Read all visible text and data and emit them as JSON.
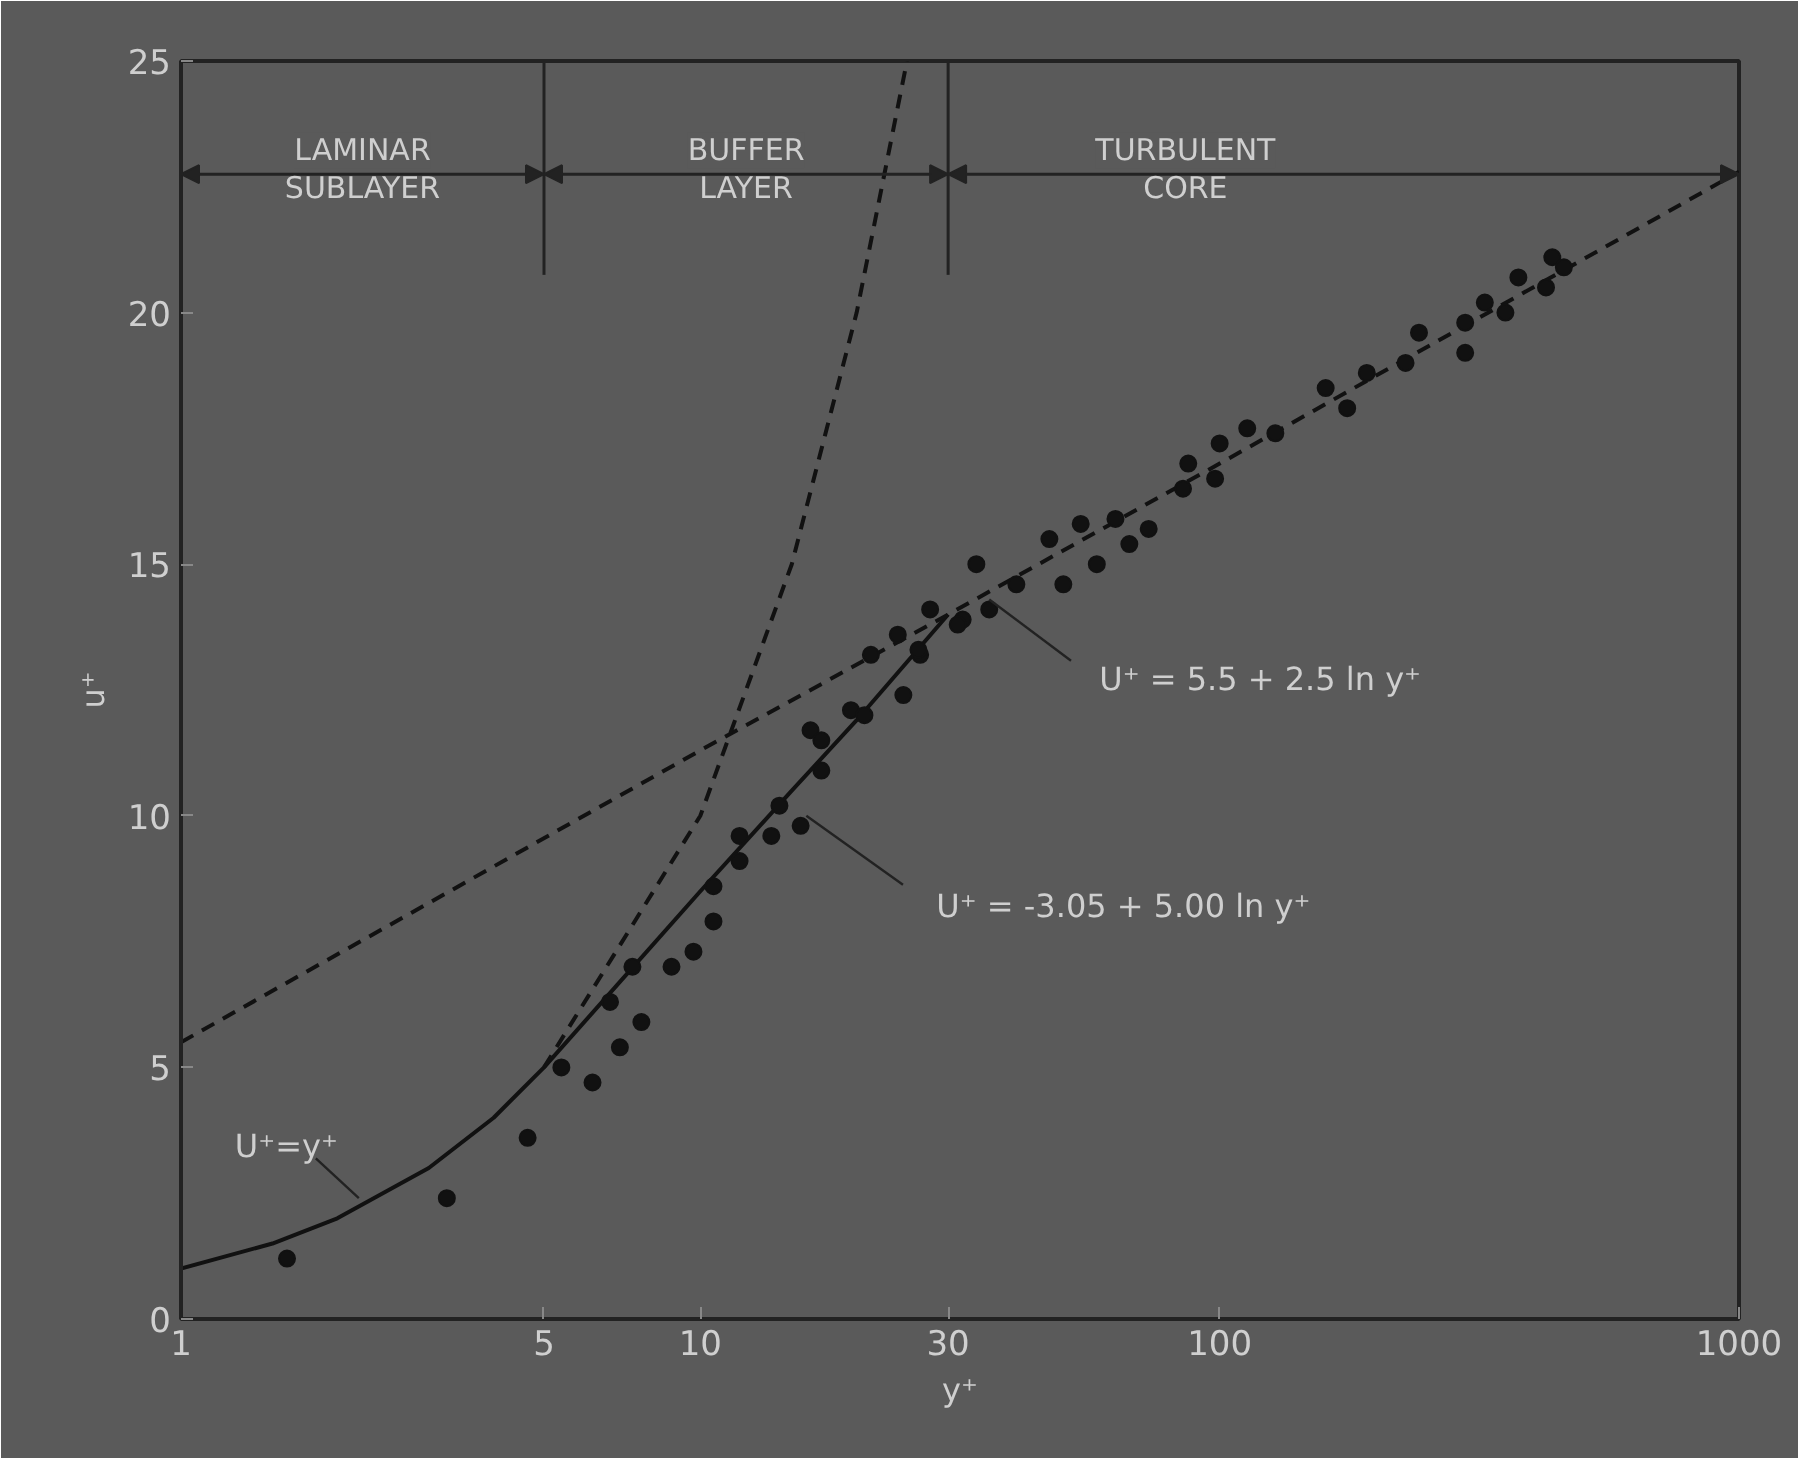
{
  "chart_data": {
    "type": "line",
    "xlabel": "y⁺",
    "ylabel": "u⁺",
    "log": "x",
    "grid": false,
    "marker": "none",
    "xlim": [
      1,
      1000
    ],
    "ylim": [
      0,
      25
    ],
    "xticks": [
      1,
      5,
      10,
      30,
      100,
      1000
    ],
    "yticks": [
      0,
      5,
      10,
      15,
      20,
      25
    ],
    "series": [
      {
        "color": "#111111",
        "line_style": "solid",
        "x": [
          1,
          1.5,
          2,
          3,
          4,
          5,
          7,
          10,
          15,
          20,
          30
        ],
        "values": [
          1,
          1.5,
          2,
          3,
          4,
          5.0,
          6.7,
          8.5,
          10.5,
          11.9,
          14.0
        ]
      },
      {
        "color": "#111111",
        "line_style": "dashed",
        "x": [
          1,
          10,
          30,
          100,
          1000
        ],
        "values": [
          5.5,
          11.3,
          14.0,
          17.0,
          22.8
        ]
      },
      {
        "color": "#111111",
        "line_style": "dashed",
        "x": [
          5,
          10,
          15,
          20,
          25
        ],
        "values": [
          5,
          10,
          15,
          20,
          25
        ]
      },
      {
        "type": "scatter",
        "color": "#111111",
        "marker": "circle",
        "x": [
          1.6,
          3.25,
          4.65,
          5.4,
          6.2,
          7.0,
          7.7,
          6.7,
          7.4,
          8.8,
          9.7,
          10.6,
          10.6,
          11.9,
          11.9,
          13.7,
          14.2,
          15.6,
          16.3,
          17.1,
          17.1,
          19.5,
          20.7,
          21.3,
          24.6,
          24,
          27.7,
          26.5,
          32,
          34,
          36,
          26.3,
          31.3,
          40.6,
          47,
          50,
          54,
          58,
          63,
          67,
          73,
          85,
          87,
          98,
          100,
          113,
          128,
          160,
          176,
          192,
          228,
          242,
          297,
          297,
          324,
          355,
          376,
          425,
          437,
          460
        ],
        "values": [
          1.2,
          2.4,
          3.6,
          5.0,
          4.7,
          5.4,
          5.9,
          6.3,
          7.0,
          7.0,
          7.3,
          7.9,
          8.6,
          9.1,
          9.6,
          9.6,
          10.2,
          9.8,
          11.7,
          10.9,
          11.5,
          12.1,
          12.0,
          13.2,
          12.4,
          13.6,
          14.1,
          13.2,
          13.9,
          15.0,
          14.1,
          13.3,
          13.8,
          14.6,
          15.5,
          14.6,
          15.8,
          15.0,
          15.9,
          15.4,
          15.7,
          16.5,
          17.0,
          16.7,
          17.4,
          17.7,
          17.6,
          18.5,
          18.1,
          18.8,
          19.0,
          19.6,
          19.2,
          19.8,
          20.2,
          20.0,
          20.7,
          20.5,
          21.1,
          20.9
        ]
      }
    ],
    "ref_lines": [
      {
        "axis": "x",
        "value": 5
      },
      {
        "axis": "x",
        "value": 30
      }
    ],
    "annotations": [
      "LAMINAR\nSUBLAYER",
      "BUFFER\nLAYER",
      "TURBULENT\nCORE",
      {
        "text": "U⁺=y⁺",
        "x": 2.2,
        "y": 2.4
      },
      {
        "text": "U⁺ = 5.5 + 2.5 ln y⁺",
        "x": 36,
        "y": 14.3
      },
      {
        "text": "U⁺ = -3.05 + 5.00 ln y⁺",
        "x": 16,
        "y": 10
      }
    ]
  }
}
